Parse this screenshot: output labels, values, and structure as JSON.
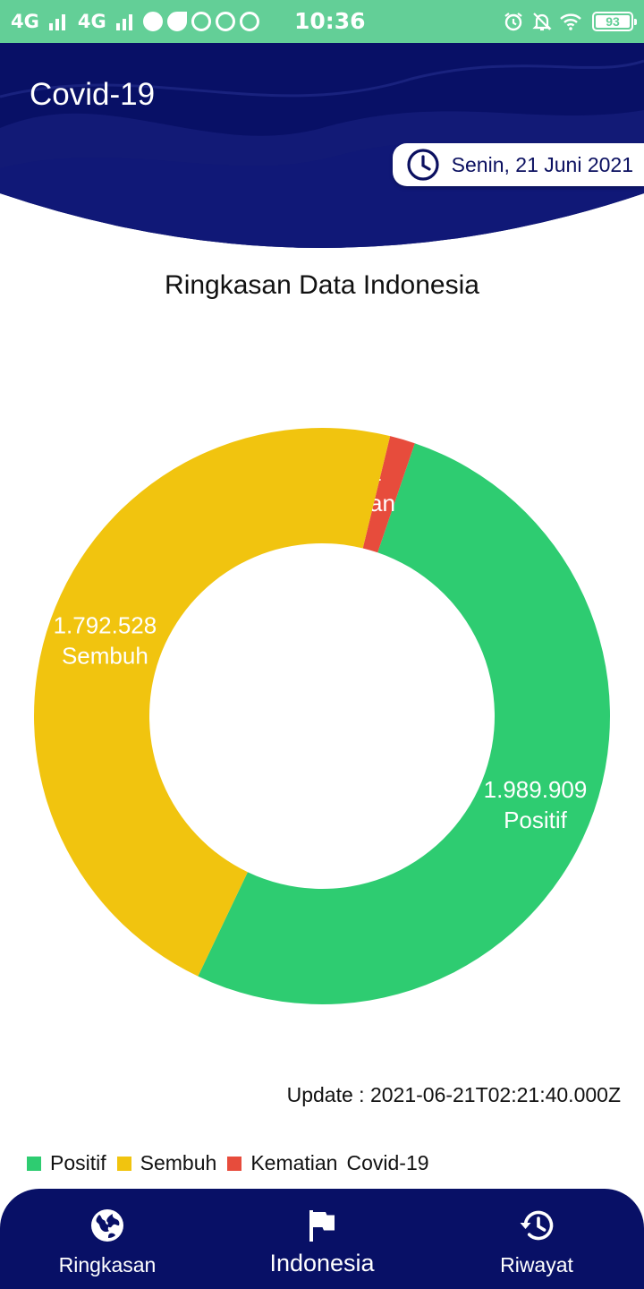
{
  "status_bar": {
    "network_1": "4G",
    "network_2": "4G",
    "time": "10:36",
    "battery": "93",
    "icons": [
      "signal-icon",
      "signal-icon",
      "app-notification-icon",
      "leaf-icon",
      "tiktok-icon",
      "whatsapp-icon",
      "messenger-icon",
      "alarm-icon",
      "notifications-off-icon",
      "wifi-icon",
      "battery-icon"
    ]
  },
  "header": {
    "title": "Covid-19",
    "date": "Senin, 21 Juni 2021",
    "date_icon": "clock-icon"
  },
  "section_title": "Ringkasan Data Indonesia",
  "chart_data": {
    "type": "pie",
    "variant": "donut",
    "slices": [
      {
        "label": "Positif",
        "value": 1989909,
        "value_text": "1.989.909",
        "color": "#2ecc71"
      },
      {
        "label": "Kematian",
        "value": 54662,
        "value_text": "54.662",
        "color": "#e74c3c"
      },
      {
        "label": "Sembuh",
        "value": 1792528,
        "value_text": "1.792.528",
        "color": "#f1c40f"
      }
    ],
    "legend": {
      "items": [
        {
          "label": "Positif",
          "color": "#2ecc71"
        },
        {
          "label": "Sembuh",
          "color": "#f1c40f"
        },
        {
          "label": "Kematian",
          "color": "#e74c3c"
        }
      ],
      "caption": "Covid-19",
      "placement": "bottom-left"
    }
  },
  "update_text": "Update : 2021-06-21T02:21:40.000Z",
  "nav": {
    "items": [
      {
        "label": "Ringkasan",
        "icon": "globe-icon",
        "active": false
      },
      {
        "label": "Indonesia",
        "icon": "flag-icon",
        "active": true
      },
      {
        "label": "Riwayat",
        "icon": "history-icon",
        "active": false
      }
    ]
  },
  "colors": {
    "header_bg": "#081066",
    "status_bar_bg": "#63cf97",
    "positif": "#2ecc71",
    "sembuh": "#f1c40f",
    "kematian": "#e74c3c"
  }
}
